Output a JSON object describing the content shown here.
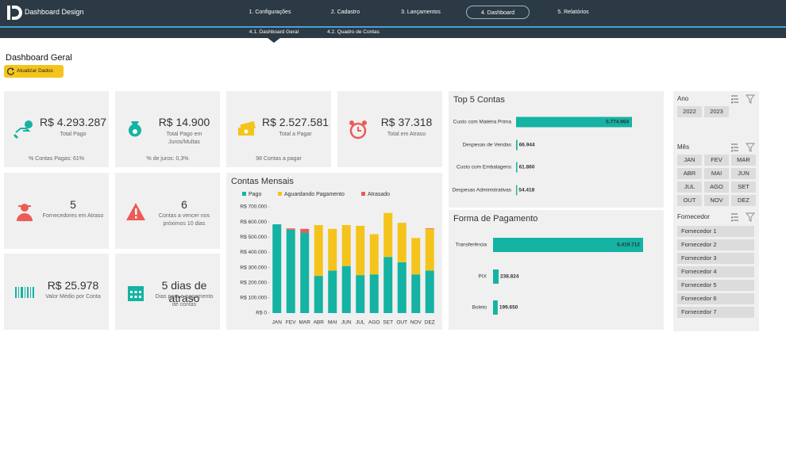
{
  "header": {
    "logo": "Dashboard Design"
  },
  "nav": {
    "tabs": [
      "1. Configurações",
      "2. Cadastro",
      "3. Lançamentos",
      "4. Dashboard",
      "5. Relatórios"
    ],
    "active_tab": 3,
    "subtabs": [
      "4.1. Dashboard Geral",
      "4.2. Quadro de Contas"
    ],
    "active_subtab": 0
  },
  "page": {
    "title": "Dashboard Geral",
    "refresh_button": "Atualizar Dados"
  },
  "cards": [
    {
      "value": "R$ 4.293.287",
      "label": "Total Pago",
      "note": "% Contas Pagas: 61%"
    },
    {
      "value": "R$ 14.900",
      "label": "Total Pago em Juros/Multas",
      "note": "% de juros: 0,3%"
    },
    {
      "value": "R$ 2.527.581",
      "label": "Total a Pagar",
      "note": "98 Contas a pagar"
    },
    {
      "value": "R$ 37.318",
      "label": "Total em Atraso"
    },
    {
      "value": "5",
      "label": "Fornecedores em Atraso"
    },
    {
      "value": "6",
      "label": "Contas a vencer nos próximos 10 dias"
    },
    {
      "value": "R$ 25.978",
      "label": "Valor Médio por Conta"
    },
    {
      "value": "5 dias de atraso",
      "label": "Dias para o pagamento de contas"
    }
  ],
  "chart_data": [
    {
      "type": "stacked-bar",
      "title": "Contas Mensais",
      "categories": [
        "JAN",
        "FEV",
        "MAR",
        "ABR",
        "MAI",
        "JUN",
        "JUL",
        "AGO",
        "SET",
        "OUT",
        "NOV",
        "DEZ"
      ],
      "series": [
        {
          "name": "Pago",
          "color": "#14b3a3",
          "values": [
            585000,
            550000,
            530000,
            245000,
            280000,
            310000,
            250000,
            255000,
            370000,
            335000,
            255000,
            280000
          ]
        },
        {
          "name": "Aguardando Pagamento",
          "color": "#f4c41c",
          "values": [
            0,
            0,
            0,
            335000,
            275000,
            270000,
            325000,
            265000,
            290000,
            260000,
            240000,
            275000
          ]
        },
        {
          "name": "Atrasado",
          "color": "#ec5b58",
          "values": [
            0,
            8000,
            25000,
            0,
            0,
            0,
            0,
            0,
            0,
            0,
            0,
            4000
          ]
        }
      ],
      "ylim": [
        0,
        700000
      ],
      "yticks": [
        {
          "value": 0,
          "label": "R$ 0"
        },
        {
          "value": 100000,
          "label": "R$ 100.000"
        },
        {
          "value": 200000,
          "label": "R$ 200.000"
        },
        {
          "value": 300000,
          "label": "R$ 300.000"
        },
        {
          "value": 400000,
          "label": "R$ 400.000"
        },
        {
          "value": 500000,
          "label": "R$ 500.000"
        },
        {
          "value": 600000,
          "label": "R$ 600.000"
        },
        {
          "value": 700000,
          "label": "R$ 700.000"
        }
      ]
    },
    {
      "type": "hbar",
      "title": "Top 5 Contas",
      "color": "#14b3a3",
      "categories": [
        "Custo com Matéria Prima",
        "Despesas de Vendas",
        "Custo com Embalagens",
        "Despesas Administrativas"
      ],
      "values": [
        5774964,
        66944,
        61860,
        54418
      ],
      "value_labels": [
        "5.774.964",
        "66.944",
        "61.860",
        "54.418"
      ]
    },
    {
      "type": "hbar",
      "title": "Forma de Pagamento",
      "color": "#14b3a3",
      "categories": [
        "Transferência",
        "PIX",
        "Boleto"
      ],
      "values": [
        6419712,
        238824,
        199650
      ],
      "value_labels": [
        "6.419.712",
        "238.824",
        "199.650"
      ]
    }
  ],
  "filters": [
    {
      "title": "Ano",
      "options": [
        "2022",
        "2023"
      ]
    },
    {
      "title": "Mês",
      "options": [
        "JAN",
        "FEV",
        "MAR",
        "ABR",
        "MAI",
        "JUN",
        "JUL",
        "AGO",
        "SET",
        "OUT",
        "NOV",
        "DEZ"
      ]
    },
    {
      "title": "Fornecedor",
      "options": [
        "Fornecedor 1",
        "Fornecedor 2",
        "Fornecedor 3",
        "Fornecedor 4",
        "Fornecedor 5",
        "Fornecedor 6",
        "Fornecedor 7"
      ]
    }
  ]
}
